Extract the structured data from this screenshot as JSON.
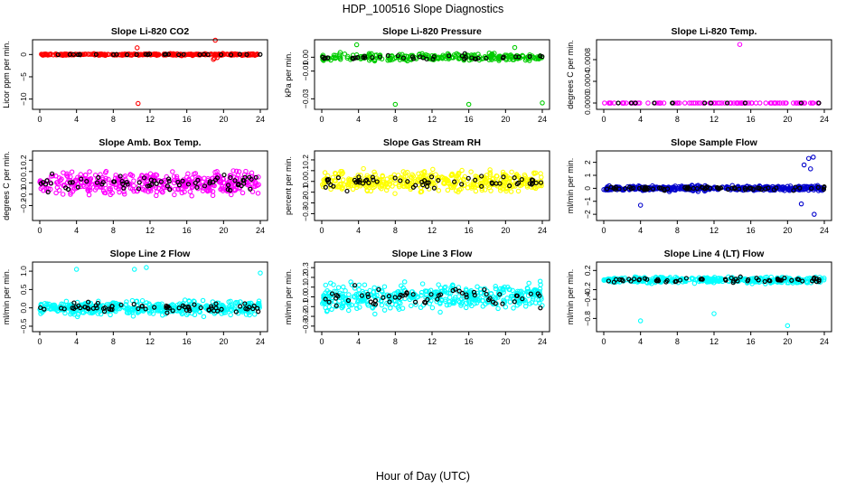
{
  "figure": {
    "title": "HDP_100516  Slope Diagnostics",
    "xlabel": "Hour of Day (UTC)"
  },
  "chart_data": [
    {
      "type": "scatter",
      "title": "Slope Li-820 CO2",
      "ylabel": "Licor ppm per min.",
      "xlim": [
        0,
        24
      ],
      "ylim": [
        -11.5,
        2.5
      ],
      "xticks": [
        0,
        4,
        8,
        12,
        16,
        20,
        24
      ],
      "yticks": [
        {
          "v": 0,
          "label": "0"
        },
        {
          "v": -5,
          "label": "−5"
        },
        {
          "v": -10,
          "label": "−10"
        }
      ],
      "color": "#ff0000",
      "spread": 0.15,
      "n": 320,
      "dn": 26,
      "outliers": [
        [
          10.6,
          1.5
        ],
        [
          10.7,
          -11
        ],
        [
          19.1,
          3.2
        ],
        [
          19.0,
          -0.8
        ],
        [
          18.9,
          -1.1
        ],
        [
          19.3,
          -0.7
        ]
      ]
    },
    {
      "type": "scatter",
      "title": "Slope Li-820 Pressure",
      "ylabel": "kPa per min.",
      "xlim": [
        0,
        24
      ],
      "ylim": [
        -0.035,
        0.01
      ],
      "xticks": [
        0,
        4,
        8,
        12,
        16,
        20,
        24
      ],
      "yticks": [
        {
          "v": 0,
          "label": "0.00"
        },
        {
          "v": -0.01,
          "label": "−0.01"
        },
        {
          "v": -0.03,
          "label": "−0.03"
        }
      ],
      "color": "#00cc00",
      "spread": 0.002,
      "n": 260,
      "dn": 40,
      "outliers": [
        [
          8,
          -0.034
        ],
        [
          16,
          -0.034
        ],
        [
          24,
          -0.033
        ],
        [
          3.8,
          0.009
        ],
        [
          21,
          0.007
        ]
      ]
    },
    {
      "type": "scatter",
      "title": "Slope Li-820 Temp.",
      "ylabel": "degrees C per min.",
      "xlim": [
        0,
        24
      ],
      "ylim": [
        -5e-05,
        0.0011
      ],
      "xticks": [
        0,
        4,
        8,
        12,
        16,
        20,
        24
      ],
      "yticks": [
        {
          "v": 0,
          "label": "0.0000"
        },
        {
          "v": 0.0004,
          "label": "0.0004"
        },
        {
          "v": 0.0008,
          "label": "0.0008"
        }
      ],
      "color": "#ff00ff",
      "spread": 0,
      "n": 100,
      "dn": 12,
      "outliers": [
        [
          14.8,
          0.00108
        ]
      ]
    },
    {
      "type": "scatter",
      "title": "Slope Amb. Box Temp.",
      "ylabel": "degrees C per min.",
      "xlim": [
        0,
        24
      ],
      "ylim": [
        -0.3,
        0.25
      ],
      "xticks": [
        0,
        4,
        8,
        12,
        16,
        20,
        24
      ],
      "yticks": [
        {
          "v": 0.2,
          "label": "0.2"
        },
        {
          "v": 0.1,
          "label": "0.1"
        },
        {
          "v": 0,
          "label": "0.0"
        },
        {
          "v": -0.1,
          "label": "−0.1"
        },
        {
          "v": -0.2,
          "label": "−0.2"
        }
      ],
      "color": "#ff00ff",
      "spread": 0.08,
      "n": 420,
      "dn": 70,
      "outliers": []
    },
    {
      "type": "scatter",
      "title": "Slope Gas Stream RH",
      "ylabel": "percent per min.",
      "xlim": [
        0,
        24
      ],
      "ylim": [
        -0.33,
        0.25
      ],
      "xticks": [
        0,
        4,
        8,
        12,
        16,
        20,
        24
      ],
      "yticks": [
        {
          "v": 0.2,
          "label": "0.2"
        },
        {
          "v": 0.1,
          "label": "0.1"
        },
        {
          "v": 0,
          "label": "0.0"
        },
        {
          "v": -0.1,
          "label": "−0.1"
        },
        {
          "v": -0.2,
          "label": "−0.2"
        },
        {
          "v": -0.3,
          "label": "−0.3"
        }
      ],
      "color": "#ffff00",
      "spread": 0.08,
      "n": 420,
      "dn": 60,
      "outliers": []
    },
    {
      "type": "scatter",
      "title": "Slope Sample Flow",
      "ylabel": "ml/min per min.",
      "xlim": [
        0,
        24
      ],
      "ylim": [
        -2.2,
        2.6
      ],
      "xticks": [
        0,
        4,
        8,
        12,
        16,
        20,
        24
      ],
      "yticks": [
        {
          "v": 2,
          "label": "2"
        },
        {
          "v": 1,
          "label": "1"
        },
        {
          "v": 0,
          "label": "0"
        },
        {
          "v": -1,
          "label": "−1"
        },
        {
          "v": -2,
          "label": "−2"
        }
      ],
      "color": "#0000cc",
      "spread": 0.15,
      "n": 420,
      "dn": 70,
      "outliers": [
        [
          21.8,
          1.8
        ],
        [
          22.3,
          2.3
        ],
        [
          22.8,
          2.4
        ],
        [
          22.5,
          1.5
        ],
        [
          22.9,
          -2
        ],
        [
          4,
          -1.3
        ],
        [
          21.5,
          -1.2
        ]
      ]
    },
    {
      "type": "scatter",
      "title": "Slope Line 2 Flow",
      "ylabel": "ml/min per min.",
      "xlim": [
        0,
        24
      ],
      "ylim": [
        -0.55,
        1.15
      ],
      "xticks": [
        0,
        4,
        8,
        12,
        16,
        20,
        24
      ],
      "yticks": [
        {
          "v": 1,
          "label": "1.0"
        },
        {
          "v": 0.5,
          "label": "0.5"
        },
        {
          "v": 0,
          "label": "0.0"
        },
        {
          "v": -0.5,
          "label": "−0.5"
        }
      ],
      "color": "#00ffff",
      "spread": 0.15,
      "n": 420,
      "dn": 70,
      "outliers": [
        [
          4,
          1.05
        ],
        [
          10.3,
          1.05
        ],
        [
          11.6,
          1.1
        ],
        [
          24,
          0.95
        ]
      ]
    },
    {
      "type": "scatter",
      "title": "Slope Line 3 Flow",
      "ylabel": "ml/min per min.",
      "xlim": [
        0,
        24
      ],
      "ylim": [
        -0.32,
        0.32
      ],
      "xticks": [
        0,
        4,
        8,
        12,
        16,
        20,
        24
      ],
      "yticks": [
        {
          "v": 0.3,
          "label": "0.3"
        },
        {
          "v": 0.2,
          "label": "0.2"
        },
        {
          "v": 0.1,
          "label": "0.1"
        },
        {
          "v": 0,
          "label": "0.0"
        },
        {
          "v": -0.1,
          "label": "−0.1"
        },
        {
          "v": -0.2,
          "label": "−0.2"
        },
        {
          "v": -0.3,
          "label": "−0.3"
        }
      ],
      "color": "#00ffff",
      "spread": 0.1,
      "n": 420,
      "dn": 60,
      "outliers": []
    },
    {
      "type": "scatter",
      "title": "Slope Line 4 (LT) Flow",
      "ylabel": "ml/min per min.",
      "xlim": [
        0,
        24
      ],
      "ylim": [
        -1.0,
        0.3
      ],
      "xticks": [
        0,
        4,
        8,
        12,
        16,
        20,
        24
      ],
      "yticks": [
        {
          "v": 0.2,
          "label": "0.2"
        },
        {
          "v": -0.2,
          "label": "−0.2"
        },
        {
          "v": -0.4,
          "label": "−0.4"
        },
        {
          "v": -0.8,
          "label": "−0.8"
        }
      ],
      "color": "#00ffff",
      "spread": 0.05,
      "n": 360,
      "dn": 60,
      "outliers": [
        [
          4,
          -0.85
        ],
        [
          12,
          -0.7
        ],
        [
          20,
          -0.95
        ]
      ]
    }
  ]
}
